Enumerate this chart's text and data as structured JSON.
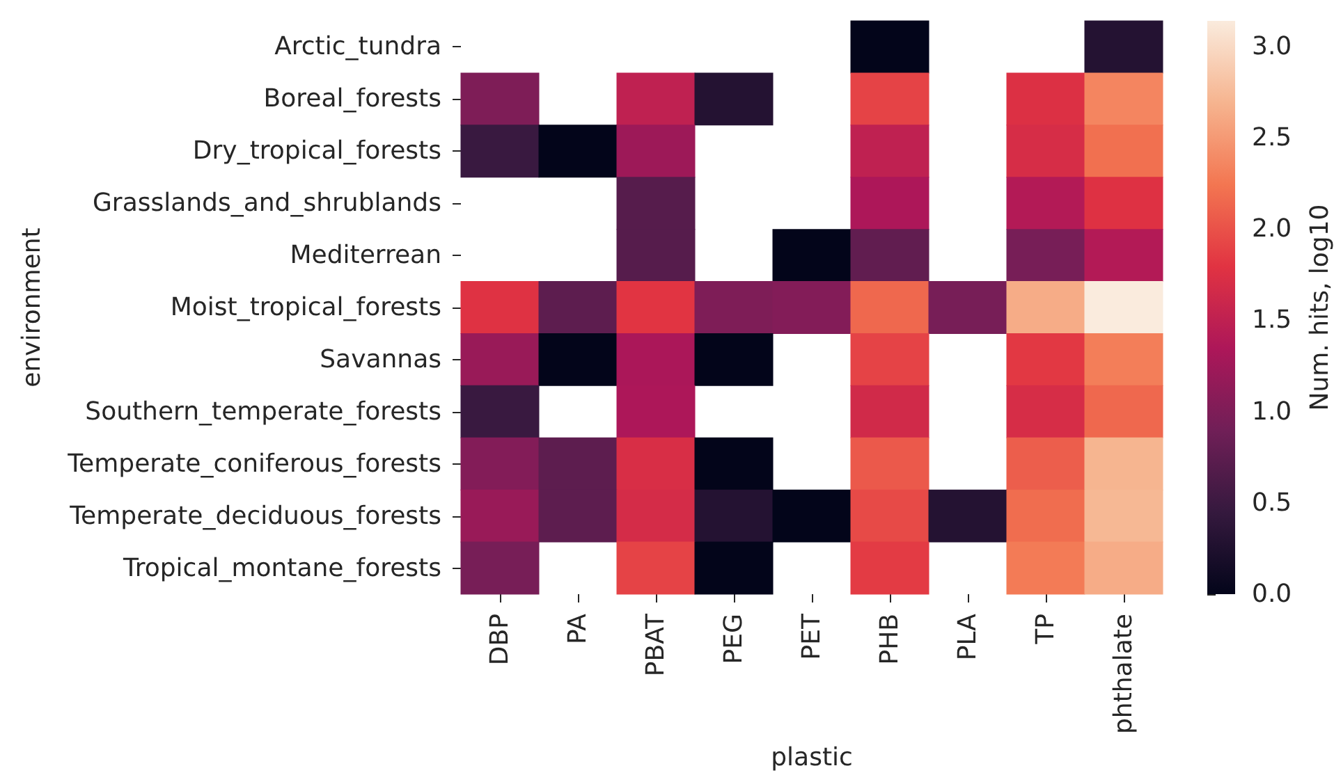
{
  "chart_data": {
    "type": "heatmap",
    "xlabel": "plastic",
    "ylabel": "environment",
    "clabel": "Num. hits, log10",
    "categories": [
      "DBP",
      "PA",
      "PBAT",
      "PEG",
      "PET",
      "PHB",
      "PLA",
      "TP",
      "phthalate"
    ],
    "y_categories": [
      "Arctic_tundra",
      "Boreal_forests",
      "Dry_tropical_forests",
      "Grasslands_and_shrublands",
      "Mediterrean",
      "Moist_tropical_forests",
      "Savannas",
      "Southern_temperate_forests",
      "Temperate_coniferous_forests",
      "Temperate_deciduous_forests",
      "Tropical_montane_forests"
    ],
    "cells": [
      [
        null,
        null,
        null,
        null,
        null,
        0,
        null,
        null,
        0.3
      ],
      [
        1.0,
        null,
        1.5,
        0.3,
        null,
        1.9,
        null,
        1.75,
        2.35
      ],
      [
        0.48,
        0,
        1.23,
        null,
        null,
        1.5,
        null,
        1.7,
        2.2
      ],
      [
        null,
        null,
        0.7,
        null,
        null,
        1.35,
        null,
        1.4,
        1.77
      ],
      [
        null,
        null,
        0.7,
        null,
        0,
        0.78,
        null,
        0.95,
        1.4
      ],
      [
        1.78,
        0.75,
        1.8,
        1.0,
        1.04,
        2.15,
        0.95,
        2.63,
        3.14
      ],
      [
        1.2,
        0,
        1.33,
        0,
        null,
        1.9,
        null,
        1.83,
        2.3
      ],
      [
        0.48,
        null,
        1.35,
        null,
        null,
        1.65,
        null,
        1.7,
        2.15
      ],
      [
        1.04,
        0.75,
        1.72,
        0,
        null,
        2.05,
        null,
        2.08,
        2.7
      ],
      [
        1.2,
        0.75,
        1.68,
        0.3,
        0,
        1.95,
        0.3,
        2.18,
        2.72
      ],
      [
        0.95,
        null,
        1.9,
        0,
        null,
        1.85,
        null,
        2.28,
        2.63
      ]
    ],
    "clim": [
      0,
      3.14
    ],
    "cticks": [
      {
        "value": 0,
        "label": "0.0"
      },
      0.5,
      {
        "value": 1,
        "label": "1.0"
      },
      1.5,
      {
        "value": 2,
        "label": "2.0"
      },
      2.5,
      {
        "value": 3,
        "label": "3.0"
      }
    ]
  }
}
